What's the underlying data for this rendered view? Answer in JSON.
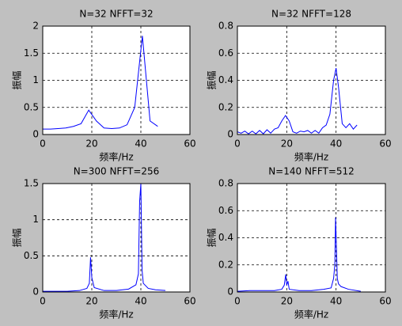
{
  "chart_data": [
    {
      "type": "line",
      "title": "N=32 NFFT=32",
      "xlabel": "频率/Hz",
      "ylabel": "振幅",
      "x": [
        0,
        3.125,
        6.25,
        9.375,
        12.5,
        15.625,
        18.75,
        21.875,
        25,
        28.125,
        31.25,
        34.375,
        37.5,
        40.625,
        43.75,
        46.875
      ],
      "values": [
        0.1,
        0.1,
        0.11,
        0.12,
        0.15,
        0.2,
        0.45,
        0.25,
        0.12,
        0.11,
        0.12,
        0.18,
        0.5,
        1.82,
        0.25,
        0.15
      ],
      "color": "#0000ff",
      "xlim": [
        0,
        60
      ],
      "xticks": [
        0,
        20,
        40,
        60
      ],
      "ylim": [
        0,
        2
      ],
      "yticks": [
        0,
        0.5,
        1,
        1.5,
        2
      ],
      "grid": true
    },
    {
      "type": "line",
      "title": "N=32 NFFT=128",
      "xlabel": "频率/Hz",
      "ylabel": "振幅",
      "x": [
        0,
        1.5,
        3,
        4.5,
        6,
        7.5,
        9,
        10.5,
        12,
        13.5,
        15,
        16.5,
        18,
        19.5,
        21,
        22.5,
        24,
        25.5,
        27,
        28.5,
        30,
        31.5,
        33,
        34.5,
        36,
        37.5,
        39,
        40,
        41,
        42.5,
        44,
        45.5,
        47,
        48.5
      ],
      "values": [
        0.02,
        0.01,
        0.025,
        0.005,
        0.025,
        0.005,
        0.03,
        0.005,
        0.035,
        0.01,
        0.04,
        0.05,
        0.1,
        0.14,
        0.1,
        0.02,
        0.01,
        0.025,
        0.02,
        0.03,
        0.01,
        0.03,
        0.01,
        0.05,
        0.07,
        0.15,
        0.4,
        0.49,
        0.35,
        0.08,
        0.05,
        0.08,
        0.04,
        0.07
      ],
      "color": "#0000ff",
      "xlim": [
        0,
        60
      ],
      "xticks": [
        0,
        20,
        40,
        60
      ],
      "ylim": [
        0,
        0.8
      ],
      "yticks": [
        0,
        0.2,
        0.4,
        0.6,
        0.8
      ],
      "grid": true
    },
    {
      "type": "line",
      "title": "N=300 NFFT=256",
      "xlabel": "频率/Hz",
      "ylabel": "振幅",
      "x": [
        0,
        10,
        15,
        18,
        19,
        19.5,
        20,
        21,
        25,
        30,
        35,
        38,
        39,
        39.5,
        40,
        40.5,
        41,
        43,
        46,
        50
      ],
      "values": [
        0.01,
        0.01,
        0.02,
        0.05,
        0.12,
        0.48,
        0.2,
        0.06,
        0.02,
        0.02,
        0.04,
        0.1,
        0.25,
        1.25,
        1.5,
        0.3,
        0.12,
        0.05,
        0.03,
        0.02
      ],
      "color": "#0000ff",
      "xlim": [
        0,
        60
      ],
      "xticks": [
        0,
        20,
        40,
        60
      ],
      "ylim": [
        0,
        1.5
      ],
      "yticks": [
        0,
        0.5,
        1,
        1.5
      ],
      "grid": true
    },
    {
      "type": "line",
      "title": "N=140 NFFT=512",
      "xlabel": "频率/Hz",
      "ylabel": "振幅",
      "x": [
        0,
        5,
        10,
        15,
        18,
        19,
        19.6,
        20,
        20.5,
        21,
        25,
        30,
        35,
        38,
        39,
        39.5,
        39.8,
        40.2,
        40.5,
        41,
        42,
        45,
        50
      ],
      "values": [
        0.005,
        0.01,
        0.01,
        0.01,
        0.02,
        0.05,
        0.13,
        0.05,
        0.08,
        0.02,
        0.01,
        0.01,
        0.02,
        0.03,
        0.1,
        0.2,
        0.55,
        0.3,
        0.1,
        0.06,
        0.04,
        0.02,
        0.005
      ],
      "color": "#0000ff",
      "xlim": [
        0,
        60
      ],
      "xticks": [
        0,
        20,
        40,
        60
      ],
      "ylim": [
        0,
        0.8
      ],
      "yticks": [
        0,
        0.2,
        0.4,
        0.6,
        0.8
      ],
      "grid": true
    }
  ]
}
